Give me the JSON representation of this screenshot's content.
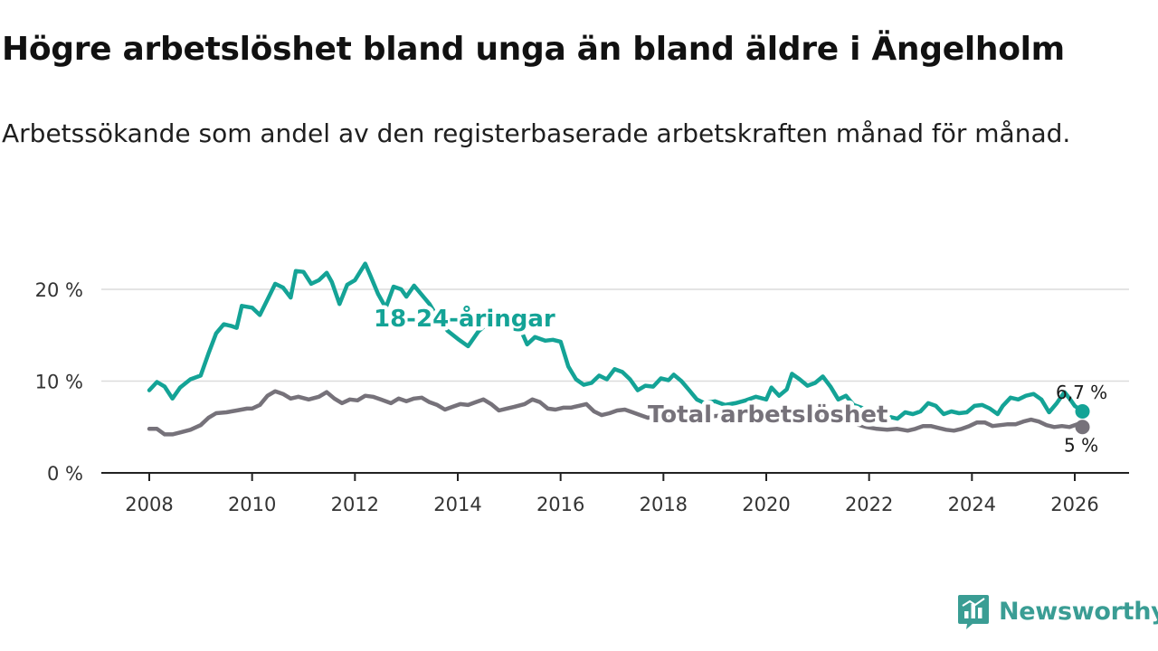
{
  "title": "Högre arbetslöshet bland unga än bland äldre i Ängelholm",
  "subtitle": "Arbetssökande som andel av den registerbaserade arbetskraften månad för månad.",
  "brand": {
    "name": "Newsworthy",
    "icon": "newsworthy-logo-icon",
    "color": "#3a9d94"
  },
  "chart_data": {
    "type": "line",
    "title": "Högre arbetslöshet bland unga än bland äldre i Ängelholm",
    "xlabel": "",
    "ylabel": "",
    "xlim": [
      2007.7,
      2027.0
    ],
    "ylim": [
      0,
      25
    ],
    "grid": true,
    "x_ticks": [
      2008,
      2010,
      2012,
      2014,
      2016,
      2018,
      2020,
      2022,
      2024,
      2026
    ],
    "y_ticks": [
      {
        "value": 0,
        "label": "0 %"
      },
      {
        "value": 10,
        "label": "10 %"
      },
      {
        "value": 20,
        "label": "20 %"
      }
    ],
    "series": [
      {
        "name": "18-24-åringar",
        "color": "#14a396",
        "end_label": "6,7 %",
        "points": [
          [
            2008.0,
            9.0
          ],
          [
            2008.15,
            9.9
          ],
          [
            2008.3,
            9.4
          ],
          [
            2008.45,
            8.1
          ],
          [
            2008.6,
            9.3
          ],
          [
            2008.8,
            10.2
          ],
          [
            2009.0,
            10.6
          ],
          [
            2009.15,
            13.0
          ],
          [
            2009.3,
            15.2
          ],
          [
            2009.45,
            16.2
          ],
          [
            2009.6,
            16.0
          ],
          [
            2009.7,
            15.8
          ],
          [
            2009.8,
            18.2
          ],
          [
            2010.0,
            18.0
          ],
          [
            2010.15,
            17.2
          ],
          [
            2010.3,
            18.9
          ],
          [
            2010.45,
            20.6
          ],
          [
            2010.6,
            20.2
          ],
          [
            2010.75,
            19.1
          ],
          [
            2010.85,
            22.0
          ],
          [
            2011.0,
            21.9
          ],
          [
            2011.15,
            20.6
          ],
          [
            2011.3,
            21.0
          ],
          [
            2011.45,
            21.8
          ],
          [
            2011.55,
            20.8
          ],
          [
            2011.7,
            18.4
          ],
          [
            2011.85,
            20.5
          ],
          [
            2012.0,
            21.0
          ],
          [
            2012.2,
            22.8
          ],
          [
            2012.3,
            21.5
          ],
          [
            2012.45,
            19.5
          ],
          [
            2012.6,
            18.0
          ],
          [
            2012.75,
            20.3
          ],
          [
            2012.9,
            20.0
          ],
          [
            2013.0,
            19.2
          ],
          [
            2013.15,
            20.4
          ],
          [
            2013.3,
            19.4
          ],
          [
            2013.45,
            18.4
          ],
          [
            2013.6,
            17.0
          ],
          [
            2013.8,
            15.5
          ],
          [
            2014.0,
            14.6
          ],
          [
            2014.2,
            13.8
          ],
          [
            2014.4,
            15.4
          ],
          [
            2014.6,
            16.4
          ],
          [
            2014.8,
            16.5
          ],
          [
            2015.0,
            16.6
          ],
          [
            2015.2,
            15.9
          ],
          [
            2015.35,
            14.0
          ],
          [
            2015.5,
            14.8
          ],
          [
            2015.7,
            14.4
          ],
          [
            2015.85,
            14.5
          ],
          [
            2016.0,
            14.3
          ],
          [
            2016.15,
            11.6
          ],
          [
            2016.3,
            10.2
          ],
          [
            2016.45,
            9.6
          ],
          [
            2016.6,
            9.8
          ],
          [
            2016.75,
            10.6
          ],
          [
            2016.9,
            10.2
          ],
          [
            2017.05,
            11.3
          ],
          [
            2017.2,
            11.0
          ],
          [
            2017.35,
            10.2
          ],
          [
            2017.5,
            9.0
          ],
          [
            2017.65,
            9.5
          ],
          [
            2017.8,
            9.4
          ],
          [
            2017.95,
            10.3
          ],
          [
            2018.1,
            10.1
          ],
          [
            2018.2,
            10.7
          ],
          [
            2018.35,
            10.0
          ],
          [
            2018.5,
            9.0
          ],
          [
            2018.65,
            8.0
          ],
          [
            2018.8,
            7.6
          ],
          [
            2019.0,
            7.8
          ],
          [
            2019.2,
            7.4
          ],
          [
            2019.4,
            7.6
          ],
          [
            2019.6,
            7.9
          ],
          [
            2019.8,
            8.3
          ],
          [
            2020.0,
            8.0
          ],
          [
            2020.1,
            9.3
          ],
          [
            2020.25,
            8.4
          ],
          [
            2020.4,
            9.1
          ],
          [
            2020.5,
            10.8
          ],
          [
            2020.65,
            10.2
          ],
          [
            2020.8,
            9.5
          ],
          [
            2020.95,
            9.8
          ],
          [
            2021.1,
            10.5
          ],
          [
            2021.25,
            9.4
          ],
          [
            2021.4,
            8.0
          ],
          [
            2021.55,
            8.4
          ],
          [
            2021.7,
            7.4
          ],
          [
            2021.85,
            7.1
          ],
          [
            2022.0,
            6.8
          ],
          [
            2022.2,
            6.4
          ],
          [
            2022.4,
            6.1
          ],
          [
            2022.55,
            5.9
          ],
          [
            2022.7,
            6.6
          ],
          [
            2022.85,
            6.4
          ],
          [
            2023.0,
            6.7
          ],
          [
            2023.15,
            7.6
          ],
          [
            2023.3,
            7.3
          ],
          [
            2023.45,
            6.4
          ],
          [
            2023.6,
            6.7
          ],
          [
            2023.75,
            6.5
          ],
          [
            2023.9,
            6.6
          ],
          [
            2024.05,
            7.3
          ],
          [
            2024.2,
            7.4
          ],
          [
            2024.35,
            7.0
          ],
          [
            2024.5,
            6.4
          ],
          [
            2024.6,
            7.3
          ],
          [
            2024.75,
            8.2
          ],
          [
            2024.9,
            8.0
          ],
          [
            2025.05,
            8.4
          ],
          [
            2025.2,
            8.6
          ],
          [
            2025.35,
            8.0
          ],
          [
            2025.5,
            6.6
          ],
          [
            2025.65,
            7.6
          ],
          [
            2025.8,
            8.8
          ],
          [
            2025.9,
            8.1
          ],
          [
            2026.0,
            7.3
          ],
          [
            2026.15,
            6.7
          ]
        ]
      },
      {
        "name": "Total arbetslöshet",
        "color": "#76727a",
        "end_label": "5 %",
        "points": [
          [
            2008.0,
            4.8
          ],
          [
            2008.15,
            4.8
          ],
          [
            2008.3,
            4.2
          ],
          [
            2008.45,
            4.2
          ],
          [
            2008.6,
            4.4
          ],
          [
            2008.8,
            4.7
          ],
          [
            2009.0,
            5.2
          ],
          [
            2009.15,
            6.0
          ],
          [
            2009.3,
            6.5
          ],
          [
            2009.5,
            6.6
          ],
          [
            2009.7,
            6.8
          ],
          [
            2009.9,
            7.0
          ],
          [
            2010.0,
            7.0
          ],
          [
            2010.15,
            7.4
          ],
          [
            2010.3,
            8.4
          ],
          [
            2010.45,
            8.9
          ],
          [
            2010.6,
            8.6
          ],
          [
            2010.75,
            8.1
          ],
          [
            2010.9,
            8.3
          ],
          [
            2011.1,
            8.0
          ],
          [
            2011.3,
            8.3
          ],
          [
            2011.45,
            8.8
          ],
          [
            2011.6,
            8.1
          ],
          [
            2011.75,
            7.6
          ],
          [
            2011.9,
            8.0
          ],
          [
            2012.05,
            7.9
          ],
          [
            2012.2,
            8.4
          ],
          [
            2012.35,
            8.3
          ],
          [
            2012.5,
            8.0
          ],
          [
            2012.7,
            7.6
          ],
          [
            2012.85,
            8.1
          ],
          [
            2013.0,
            7.8
          ],
          [
            2013.15,
            8.1
          ],
          [
            2013.3,
            8.2
          ],
          [
            2013.45,
            7.7
          ],
          [
            2013.6,
            7.4
          ],
          [
            2013.75,
            6.9
          ],
          [
            2013.9,
            7.2
          ],
          [
            2014.05,
            7.5
          ],
          [
            2014.2,
            7.4
          ],
          [
            2014.35,
            7.7
          ],
          [
            2014.5,
            8.0
          ],
          [
            2014.65,
            7.5
          ],
          [
            2014.8,
            6.8
          ],
          [
            2014.95,
            7.0
          ],
          [
            2015.1,
            7.2
          ],
          [
            2015.3,
            7.5
          ],
          [
            2015.45,
            8.0
          ],
          [
            2015.6,
            7.7
          ],
          [
            2015.75,
            7.0
          ],
          [
            2015.9,
            6.9
          ],
          [
            2016.05,
            7.1
          ],
          [
            2016.2,
            7.1
          ],
          [
            2016.35,
            7.3
          ],
          [
            2016.5,
            7.5
          ],
          [
            2016.65,
            6.7
          ],
          [
            2016.8,
            6.3
          ],
          [
            2016.95,
            6.5
          ],
          [
            2017.1,
            6.8
          ],
          [
            2017.25,
            6.9
          ],
          [
            2017.4,
            6.6
          ],
          [
            2017.55,
            6.3
          ],
          [
            2017.7,
            6.0
          ],
          [
            2017.85,
            6.2
          ],
          [
            2018.0,
            6.3
          ],
          [
            2018.2,
            6.1
          ],
          [
            2018.4,
            6.4
          ],
          [
            2018.6,
            6.1
          ],
          [
            2018.8,
            6.0
          ],
          [
            2019.0,
            6.2
          ],
          [
            2019.3,
            6.3
          ],
          [
            2019.6,
            6.4
          ],
          [
            2019.9,
            6.5
          ],
          [
            2020.2,
            6.7
          ],
          [
            2020.5,
            6.4
          ],
          [
            2020.8,
            6.2
          ],
          [
            2021.1,
            6.0
          ],
          [
            2021.4,
            5.7
          ],
          [
            2021.7,
            5.4
          ],
          [
            2021.95,
            5.0
          ],
          [
            2022.15,
            4.8
          ],
          [
            2022.35,
            4.7
          ],
          [
            2022.55,
            4.8
          ],
          [
            2022.75,
            4.6
          ],
          [
            2022.9,
            4.8
          ],
          [
            2023.05,
            5.1
          ],
          [
            2023.2,
            5.1
          ],
          [
            2023.35,
            4.9
          ],
          [
            2023.5,
            4.7
          ],
          [
            2023.65,
            4.6
          ],
          [
            2023.8,
            4.8
          ],
          [
            2023.95,
            5.1
          ],
          [
            2024.1,
            5.5
          ],
          [
            2024.25,
            5.5
          ],
          [
            2024.4,
            5.1
          ],
          [
            2024.55,
            5.2
          ],
          [
            2024.7,
            5.3
          ],
          [
            2024.85,
            5.3
          ],
          [
            2025.0,
            5.6
          ],
          [
            2025.15,
            5.8
          ],
          [
            2025.3,
            5.6
          ],
          [
            2025.45,
            5.2
          ],
          [
            2025.6,
            5.0
          ],
          [
            2025.75,
            5.1
          ],
          [
            2025.9,
            5.0
          ],
          [
            2026.05,
            5.3
          ],
          [
            2026.15,
            5.0
          ]
        ]
      }
    ]
  }
}
